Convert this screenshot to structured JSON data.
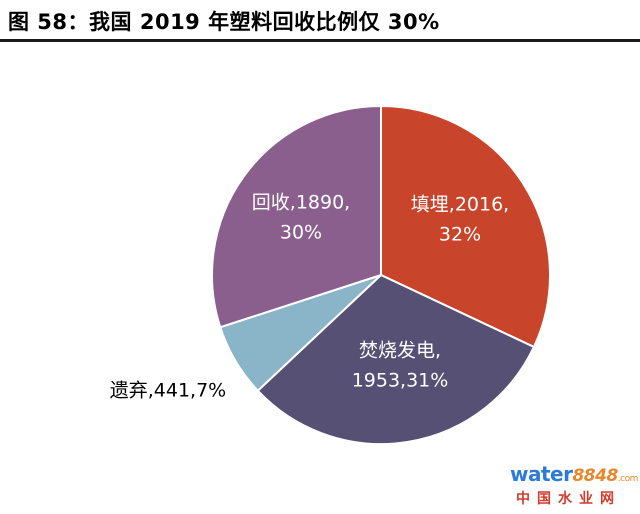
{
  "title": "图 58：我国 2019 年塑料回收比例仅 30%",
  "watermark": {
    "brand_a": "water",
    "brand_b": "8848",
    "brand_c": ".com",
    "sub": "中国水业网"
  },
  "chart_data": {
    "type": "pie",
    "title": "图 58：我国 2019 年塑料回收比例仅 30%",
    "slices": [
      {
        "name": "填埋",
        "value": 2016,
        "percent": "32%",
        "color": "#c8442a",
        "label_lines": [
          "填埋,2016,",
          "32%"
        ]
      },
      {
        "name": "焚烧发电",
        "value": 1953,
        "percent": "31%",
        "color": "#565074",
        "label_lines": [
          "焚烧发电,",
          "1953,31%"
        ]
      },
      {
        "name": "遗弃",
        "value": 441,
        "percent": "7%",
        "color": "#8ab4c8",
        "label_lines": [
          "遗弃,441,7%"
        ]
      },
      {
        "name": "回收",
        "value": 1890,
        "percent": "30%",
        "color": "#8a5f8e",
        "label_lines": [
          "回收,1890,",
          "30%"
        ]
      }
    ],
    "start_angle_deg": 0,
    "direction": "clockwise",
    "label_colors": {
      "inside": "#ffffff",
      "outside": "#000000"
    }
  }
}
